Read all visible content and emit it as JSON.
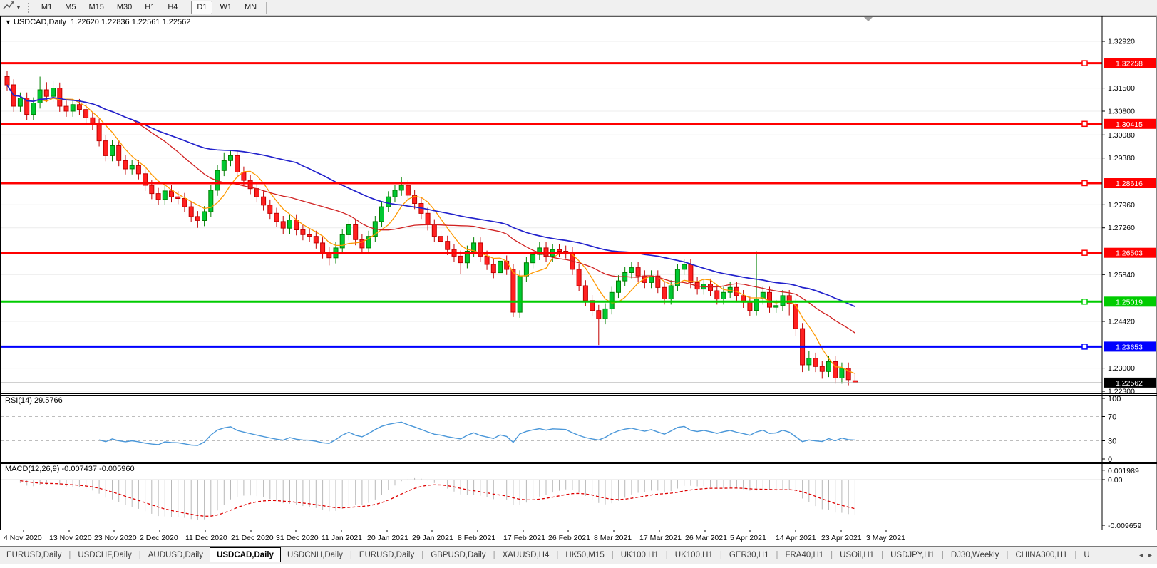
{
  "toolbar": {
    "tool_icon": "draw-tool-icon",
    "timeframes": [
      "M1",
      "M5",
      "M15",
      "M30",
      "H1",
      "H4",
      "D1",
      "W1",
      "MN"
    ],
    "active_timeframe": "D1"
  },
  "chart_data": {
    "type": "candlestick",
    "symbol": "USDCAD,Daily",
    "title_caret": "▼",
    "ohlc_display": {
      "open": "1.22620",
      "high": "1.22836",
      "low": "1.22561",
      "close": "1.22562"
    },
    "x_dates": [
      "4 Nov 2020",
      "13 Nov 2020",
      "23 Nov 2020",
      "2 Dec 2020",
      "11 Dec 2020",
      "21 Dec 2020",
      "31 Dec 2020",
      "11 Jan 2021",
      "20 Jan 2021",
      "29 Jan 2021",
      "8 Feb 2021",
      "17 Feb 2021",
      "26 Feb 2021",
      "8 Mar 2021",
      "17 Mar 2021",
      "26 Mar 2021",
      "5 Apr 2021",
      "14 Apr 2021",
      "23 Apr 2021",
      "3 May 2021"
    ],
    "price_ticks": [
      "1.32920",
      "1.31500",
      "1.30800",
      "1.30080",
      "1.29380",
      "1.27960",
      "1.27260",
      "1.25840",
      "1.24420",
      "1.23000",
      "1.22300"
    ],
    "ylim": [
      1.223,
      1.3292
    ],
    "grid": true,
    "horizontal_lines": [
      {
        "value": 1.32258,
        "label": "1.32258",
        "color": "#FF0000"
      },
      {
        "value": 1.30415,
        "label": "1.30415",
        "color": "#FF0000"
      },
      {
        "value": 1.28616,
        "label": "1.28616",
        "color": "#FF0000"
      },
      {
        "value": 1.26503,
        "label": "1.26503",
        "color": "#FF0000"
      },
      {
        "value": 1.25019,
        "label": "1.25019",
        "color": "#00CC00"
      },
      {
        "value": 1.23653,
        "label": "1.23653",
        "color": "#0000FF"
      }
    ],
    "current_price": {
      "value": 1.22562,
      "label": "1.22562",
      "bg": "#000000",
      "line_color": "#b4b4b4"
    },
    "candle_colors": {
      "bull_fill": "#00C832",
      "bull_stroke": "#008000",
      "bear_fill": "#FF2020",
      "bear_stroke": "#C00000"
    },
    "moving_averages": [
      {
        "period": 6,
        "color": "#FF9900"
      },
      {
        "period": 20,
        "color": "#D02020"
      },
      {
        "period": 45,
        "color": "#2222CC"
      }
    ],
    "candles": [
      [
        1.3185,
        1.3202,
        1.3143,
        1.316
      ],
      [
        1.316,
        1.3177,
        1.3078,
        1.3095
      ],
      [
        1.3095,
        1.3137,
        1.3078,
        1.312
      ],
      [
        1.312,
        1.3137,
        1.3053,
        1.307
      ],
      [
        1.307,
        1.3122,
        1.3053,
        1.3105
      ],
      [
        1.3105,
        1.3185,
        1.3088,
        1.3145
      ],
      [
        1.3145,
        1.3168,
        1.3108,
        1.3125
      ],
      [
        1.3125,
        1.3172,
        1.3108,
        1.315
      ],
      [
        1.315,
        1.3167,
        1.3078,
        1.3095
      ],
      [
        1.3095,
        1.3112,
        1.3063,
        1.308
      ],
      [
        1.308,
        1.3117,
        1.3063,
        1.31
      ],
      [
        1.31,
        1.3117,
        1.3068,
        1.3085
      ],
      [
        1.3085,
        1.3102,
        1.3043,
        1.306
      ],
      [
        1.306,
        1.3077,
        1.3023,
        1.304
      ],
      [
        1.304,
        1.3057,
        1.2973,
        1.299
      ],
      [
        1.299,
        1.3007,
        1.2928,
        1.2945
      ],
      [
        1.2945,
        1.2992,
        1.2928,
        1.2975
      ],
      [
        1.2975,
        1.2992,
        1.2913,
        1.293
      ],
      [
        1.293,
        1.2947,
        1.2888,
        1.2905
      ],
      [
        1.2905,
        1.2932,
        1.2888,
        1.2915
      ],
      [
        1.2915,
        1.2932,
        1.2873,
        1.289
      ],
      [
        1.289,
        1.2907,
        1.2838,
        1.2855
      ],
      [
        1.2855,
        1.2872,
        1.2813,
        1.283
      ],
      [
        1.283,
        1.2847,
        1.2795,
        1.2812
      ],
      [
        1.2812,
        1.2855,
        1.2795,
        1.2838
      ],
      [
        1.2838,
        1.2855,
        1.2803,
        1.282
      ],
      [
        1.282,
        1.2837,
        1.2798,
        1.2815
      ],
      [
        1.2815,
        1.2832,
        1.2773,
        1.279
      ],
      [
        1.279,
        1.2807,
        1.2743,
        1.276
      ],
      [
        1.276,
        1.2777,
        1.2726,
        1.2748
      ],
      [
        1.2748,
        1.2792,
        1.2731,
        1.2775
      ],
      [
        1.2775,
        1.2857,
        1.2758,
        1.284
      ],
      [
        1.284,
        1.2917,
        1.2823,
        1.29
      ],
      [
        1.29,
        1.2955,
        1.2883,
        1.293
      ],
      [
        1.293,
        1.2962,
        1.2913,
        1.2945
      ],
      [
        1.2945,
        1.2962,
        1.2878,
        1.2895
      ],
      [
        1.2895,
        1.2912,
        1.2853,
        1.287
      ],
      [
        1.287,
        1.2887,
        1.2828,
        1.2845
      ],
      [
        1.2845,
        1.2862,
        1.2803,
        1.282
      ],
      [
        1.282,
        1.2837,
        1.2778,
        1.2795
      ],
      [
        1.2795,
        1.2812,
        1.2753,
        1.277
      ],
      [
        1.277,
        1.2787,
        1.2728,
        1.2745
      ],
      [
        1.2745,
        1.2762,
        1.2708,
        1.2725
      ],
      [
        1.2725,
        1.2767,
        1.2708,
        1.275
      ],
      [
        1.275,
        1.2767,
        1.2703,
        1.272
      ],
      [
        1.272,
        1.2737,
        1.2688,
        1.2705
      ],
      [
        1.2705,
        1.2722,
        1.2683,
        1.27
      ],
      [
        1.27,
        1.2717,
        1.2663,
        1.268
      ],
      [
        1.268,
        1.2697,
        1.2633,
        1.265
      ],
      [
        1.265,
        1.2667,
        1.2612,
        1.2635
      ],
      [
        1.2635,
        1.2682,
        1.2618,
        1.2665
      ],
      [
        1.2665,
        1.2722,
        1.2648,
        1.2705
      ],
      [
        1.2705,
        1.2752,
        1.2688,
        1.2735
      ],
      [
        1.2735,
        1.2752,
        1.2673,
        1.269
      ],
      [
        1.269,
        1.2707,
        1.2648,
        1.2665
      ],
      [
        1.2665,
        1.2717,
        1.2648,
        1.27
      ],
      [
        1.27,
        1.2762,
        1.2683,
        1.2745
      ],
      [
        1.2745,
        1.2807,
        1.2728,
        1.279
      ],
      [
        1.279,
        1.2837,
        1.2773,
        1.282
      ],
      [
        1.282,
        1.2857,
        1.2803,
        1.284
      ],
      [
        1.284,
        1.288,
        1.2823,
        1.2855
      ],
      [
        1.2855,
        1.2872,
        1.2808,
        1.2825
      ],
      [
        1.2825,
        1.2842,
        1.2783,
        1.28
      ],
      [
        1.28,
        1.2817,
        1.2753,
        1.277
      ],
      [
        1.277,
        1.2787,
        1.2718,
        1.2735
      ],
      [
        1.2735,
        1.2752,
        1.2683,
        1.27
      ],
      [
        1.27,
        1.2717,
        1.2668,
        1.2685
      ],
      [
        1.2685,
        1.2702,
        1.2643,
        1.266
      ],
      [
        1.266,
        1.2677,
        1.2623,
        1.264
      ],
      [
        1.264,
        1.2657,
        1.2585,
        1.262
      ],
      [
        1.262,
        1.2672,
        1.2603,
        1.2655
      ],
      [
        1.2655,
        1.2697,
        1.2638,
        1.268
      ],
      [
        1.268,
        1.2697,
        1.2623,
        1.264
      ],
      [
        1.264,
        1.2657,
        1.2598,
        1.2615
      ],
      [
        1.2615,
        1.2632,
        1.2573,
        1.259
      ],
      [
        1.259,
        1.2642,
        1.2573,
        1.2625
      ],
      [
        1.2625,
        1.2642,
        1.2583,
        1.26
      ],
      [
        1.26,
        1.2617,
        1.2455,
        1.247
      ],
      [
        1.247,
        1.2597,
        1.2453,
        1.258
      ],
      [
        1.258,
        1.2637,
        1.2563,
        1.262
      ],
      [
        1.262,
        1.2662,
        1.2603,
        1.2645
      ],
      [
        1.2645,
        1.2682,
        1.2628,
        1.2665
      ],
      [
        1.2665,
        1.2682,
        1.2623,
        1.264
      ],
      [
        1.264,
        1.2677,
        1.2623,
        1.266
      ],
      [
        1.266,
        1.2677,
        1.2638,
        1.2655
      ],
      [
        1.2655,
        1.2672,
        1.2633,
        1.265
      ],
      [
        1.265,
        1.2667,
        1.2583,
        1.26
      ],
      [
        1.26,
        1.2617,
        1.2533,
        1.255
      ],
      [
        1.255,
        1.2567,
        1.2488,
        1.2505
      ],
      [
        1.2505,
        1.2522,
        1.2458,
        1.2475
      ],
      [
        1.2475,
        1.2492,
        1.237,
        1.245
      ],
      [
        1.245,
        1.2497,
        1.2433,
        1.248
      ],
      [
        1.248,
        1.2547,
        1.2463,
        1.253
      ],
      [
        1.253,
        1.2582,
        1.2513,
        1.2565
      ],
      [
        1.2565,
        1.2607,
        1.2548,
        1.259
      ],
      [
        1.259,
        1.2622,
        1.2573,
        1.2605
      ],
      [
        1.2605,
        1.2622,
        1.2563,
        1.258
      ],
      [
        1.258,
        1.2597,
        1.2543,
        1.256
      ],
      [
        1.256,
        1.2597,
        1.2543,
        1.258
      ],
      [
        1.258,
        1.2597,
        1.2528,
        1.2545
      ],
      [
        1.2545,
        1.2562,
        1.2493,
        1.251
      ],
      [
        1.251,
        1.2567,
        1.2493,
        1.255
      ],
      [
        1.255,
        1.2617,
        1.2533,
        1.26
      ],
      [
        1.26,
        1.2632,
        1.2583,
        1.2615
      ],
      [
        1.2615,
        1.2632,
        1.2543,
        1.256
      ],
      [
        1.256,
        1.2577,
        1.2523,
        1.254
      ],
      [
        1.254,
        1.2572,
        1.2523,
        1.2555
      ],
      [
        1.2555,
        1.2572,
        1.2518,
        1.2535
      ],
      [
        1.2535,
        1.2552,
        1.2493,
        1.251
      ],
      [
        1.251,
        1.2547,
        1.2493,
        1.253
      ],
      [
        1.253,
        1.2562,
        1.2513,
        1.2545
      ],
      [
        1.2545,
        1.2562,
        1.2503,
        1.252
      ],
      [
        1.252,
        1.2537,
        1.2483,
        1.25
      ],
      [
        1.25,
        1.2517,
        1.2458,
        1.2475
      ],
      [
        1.2475,
        1.2655,
        1.246,
        1.251
      ],
      [
        1.251,
        1.2547,
        1.2493,
        1.253
      ],
      [
        1.253,
        1.2547,
        1.2468,
        1.2485
      ],
      [
        1.2485,
        1.2507,
        1.2468,
        1.249
      ],
      [
        1.249,
        1.2537,
        1.2473,
        1.252
      ],
      [
        1.252,
        1.2537,
        1.246,
        1.2495
      ],
      [
        1.2495,
        1.2512,
        1.2398,
        1.242
      ],
      [
        1.242,
        1.2437,
        1.2288,
        1.231
      ],
      [
        1.231,
        1.2352,
        1.2293,
        1.233
      ],
      [
        1.233,
        1.2347,
        1.2288,
        1.2305
      ],
      [
        1.2305,
        1.2322,
        1.2268,
        1.229
      ],
      [
        1.229,
        1.2337,
        1.2273,
        1.232
      ],
      [
        1.232,
        1.2337,
        1.2253,
        1.227
      ],
      [
        1.227,
        1.2317,
        1.2253,
        1.23
      ],
      [
        1.23,
        1.2317,
        1.2248,
        1.2265
      ],
      [
        1.2262,
        1.22836,
        1.22561,
        1.22562
      ]
    ],
    "rsi": {
      "name": "RSI(14)",
      "value": "29.5766",
      "period": 14,
      "ticks": [
        "100",
        "70",
        "30",
        "0"
      ],
      "levels": [
        70,
        30
      ],
      "color": "#4A97D9"
    },
    "macd": {
      "name": "MACD(12,26,9)",
      "value_main": "-0.007437",
      "value_signal": "-0.005960",
      "fast": 12,
      "slow": 26,
      "signal": 9,
      "ticks": [
        "0.001989",
        "0.00",
        "-0.009659"
      ],
      "histogram_color": "#b8b8b8",
      "signal_color": "#DD0000"
    }
  },
  "tabs": {
    "items": [
      "EURUSD,Daily",
      "USDCHF,Daily",
      "AUDUSD,Daily",
      "USDCAD,Daily",
      "USDCNH,Daily",
      "EURUSD,Daily",
      "GBPUSD,Daily",
      "XAUUSD,H4",
      "HK50,M15",
      "UK100,H1",
      "UK100,H1",
      "GER30,H1",
      "FRA40,H1",
      "USOil,H1",
      "USDJPY,H1",
      "DJ30,Weekly",
      "CHINA300,H1",
      "U"
    ],
    "active_index": 3,
    "scroll_left": "◂",
    "scroll_right": "▸"
  }
}
